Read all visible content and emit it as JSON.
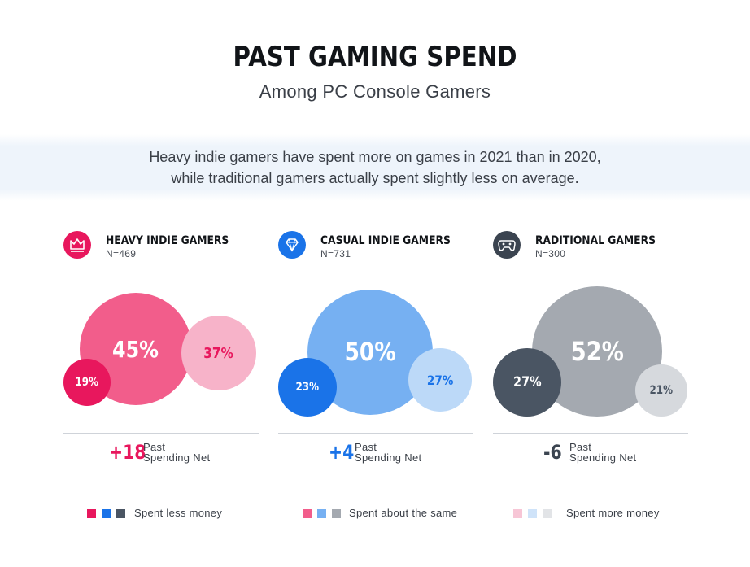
{
  "header": {
    "title": "PAST GAMING SPEND",
    "subtitle": "Among PC Console Gamers"
  },
  "summary": {
    "line1": "Heavy indie gamers have spent more on games in 2021 than in 2020,",
    "line2": "while traditional gamers actually spent slightly less on average."
  },
  "chart_data": {
    "type": "bubble",
    "title": "PAST GAMING SPEND",
    "subtitle": "Among PC Console Gamers",
    "categories": [
      "Spent less money",
      "Spent about the same",
      "Spent more money"
    ],
    "groups": [
      {
        "name": "HEAVY INDIE GAMERS",
        "n_label": "N=469",
        "icon": "crown-icon",
        "net": "+18",
        "net_label_line1": "Past",
        "net_label_line2": "Spending Net",
        "values": [
          19,
          45,
          37
        ],
        "labels": [
          "19%",
          "45%",
          "37%"
        ],
        "colors": [
          "#e8175d",
          "#f25d8b",
          "#f7b3c9"
        ],
        "accent": "#e8175d"
      },
      {
        "name": "CASUAL INDIE GAMERS",
        "n_label": "N=731",
        "icon": "diamond-icon",
        "net": "+4",
        "net_label_line1": "Past",
        "net_label_line2": "Spending Net",
        "values": [
          23,
          50,
          27
        ],
        "labels": [
          "23%",
          "50%",
          "27%"
        ],
        "colors": [
          "#1a73e8",
          "#76b0f2",
          "#bcd9f8"
        ],
        "accent": "#1a73e8"
      },
      {
        "name": "RADITIONAL GAMERS",
        "n_label": "N=300",
        "icon": "gamepad-icon",
        "net": "-6",
        "net_label_line1": "Past",
        "net_label_line2": "Spending Net",
        "values": [
          27,
          52,
          21
        ],
        "labels": [
          "27%",
          "52%",
          "21%"
        ],
        "colors": [
          "#4a5563",
          "#a4a9b0",
          "#d6d9dd"
        ],
        "accent": "#3b4450"
      }
    ]
  },
  "legend": [
    {
      "label": "Spent less money",
      "colors": [
        "#e8175d",
        "#1a73e8",
        "#4a5563"
      ]
    },
    {
      "label": "Spent about the same",
      "colors": [
        "#f25d8b",
        "#76b0f2",
        "#a4a9b0"
      ]
    },
    {
      "label": "Spent more money",
      "colors": [
        "#f7c6d6",
        "#cfe3f9",
        "#e2e4e7"
      ]
    }
  ]
}
